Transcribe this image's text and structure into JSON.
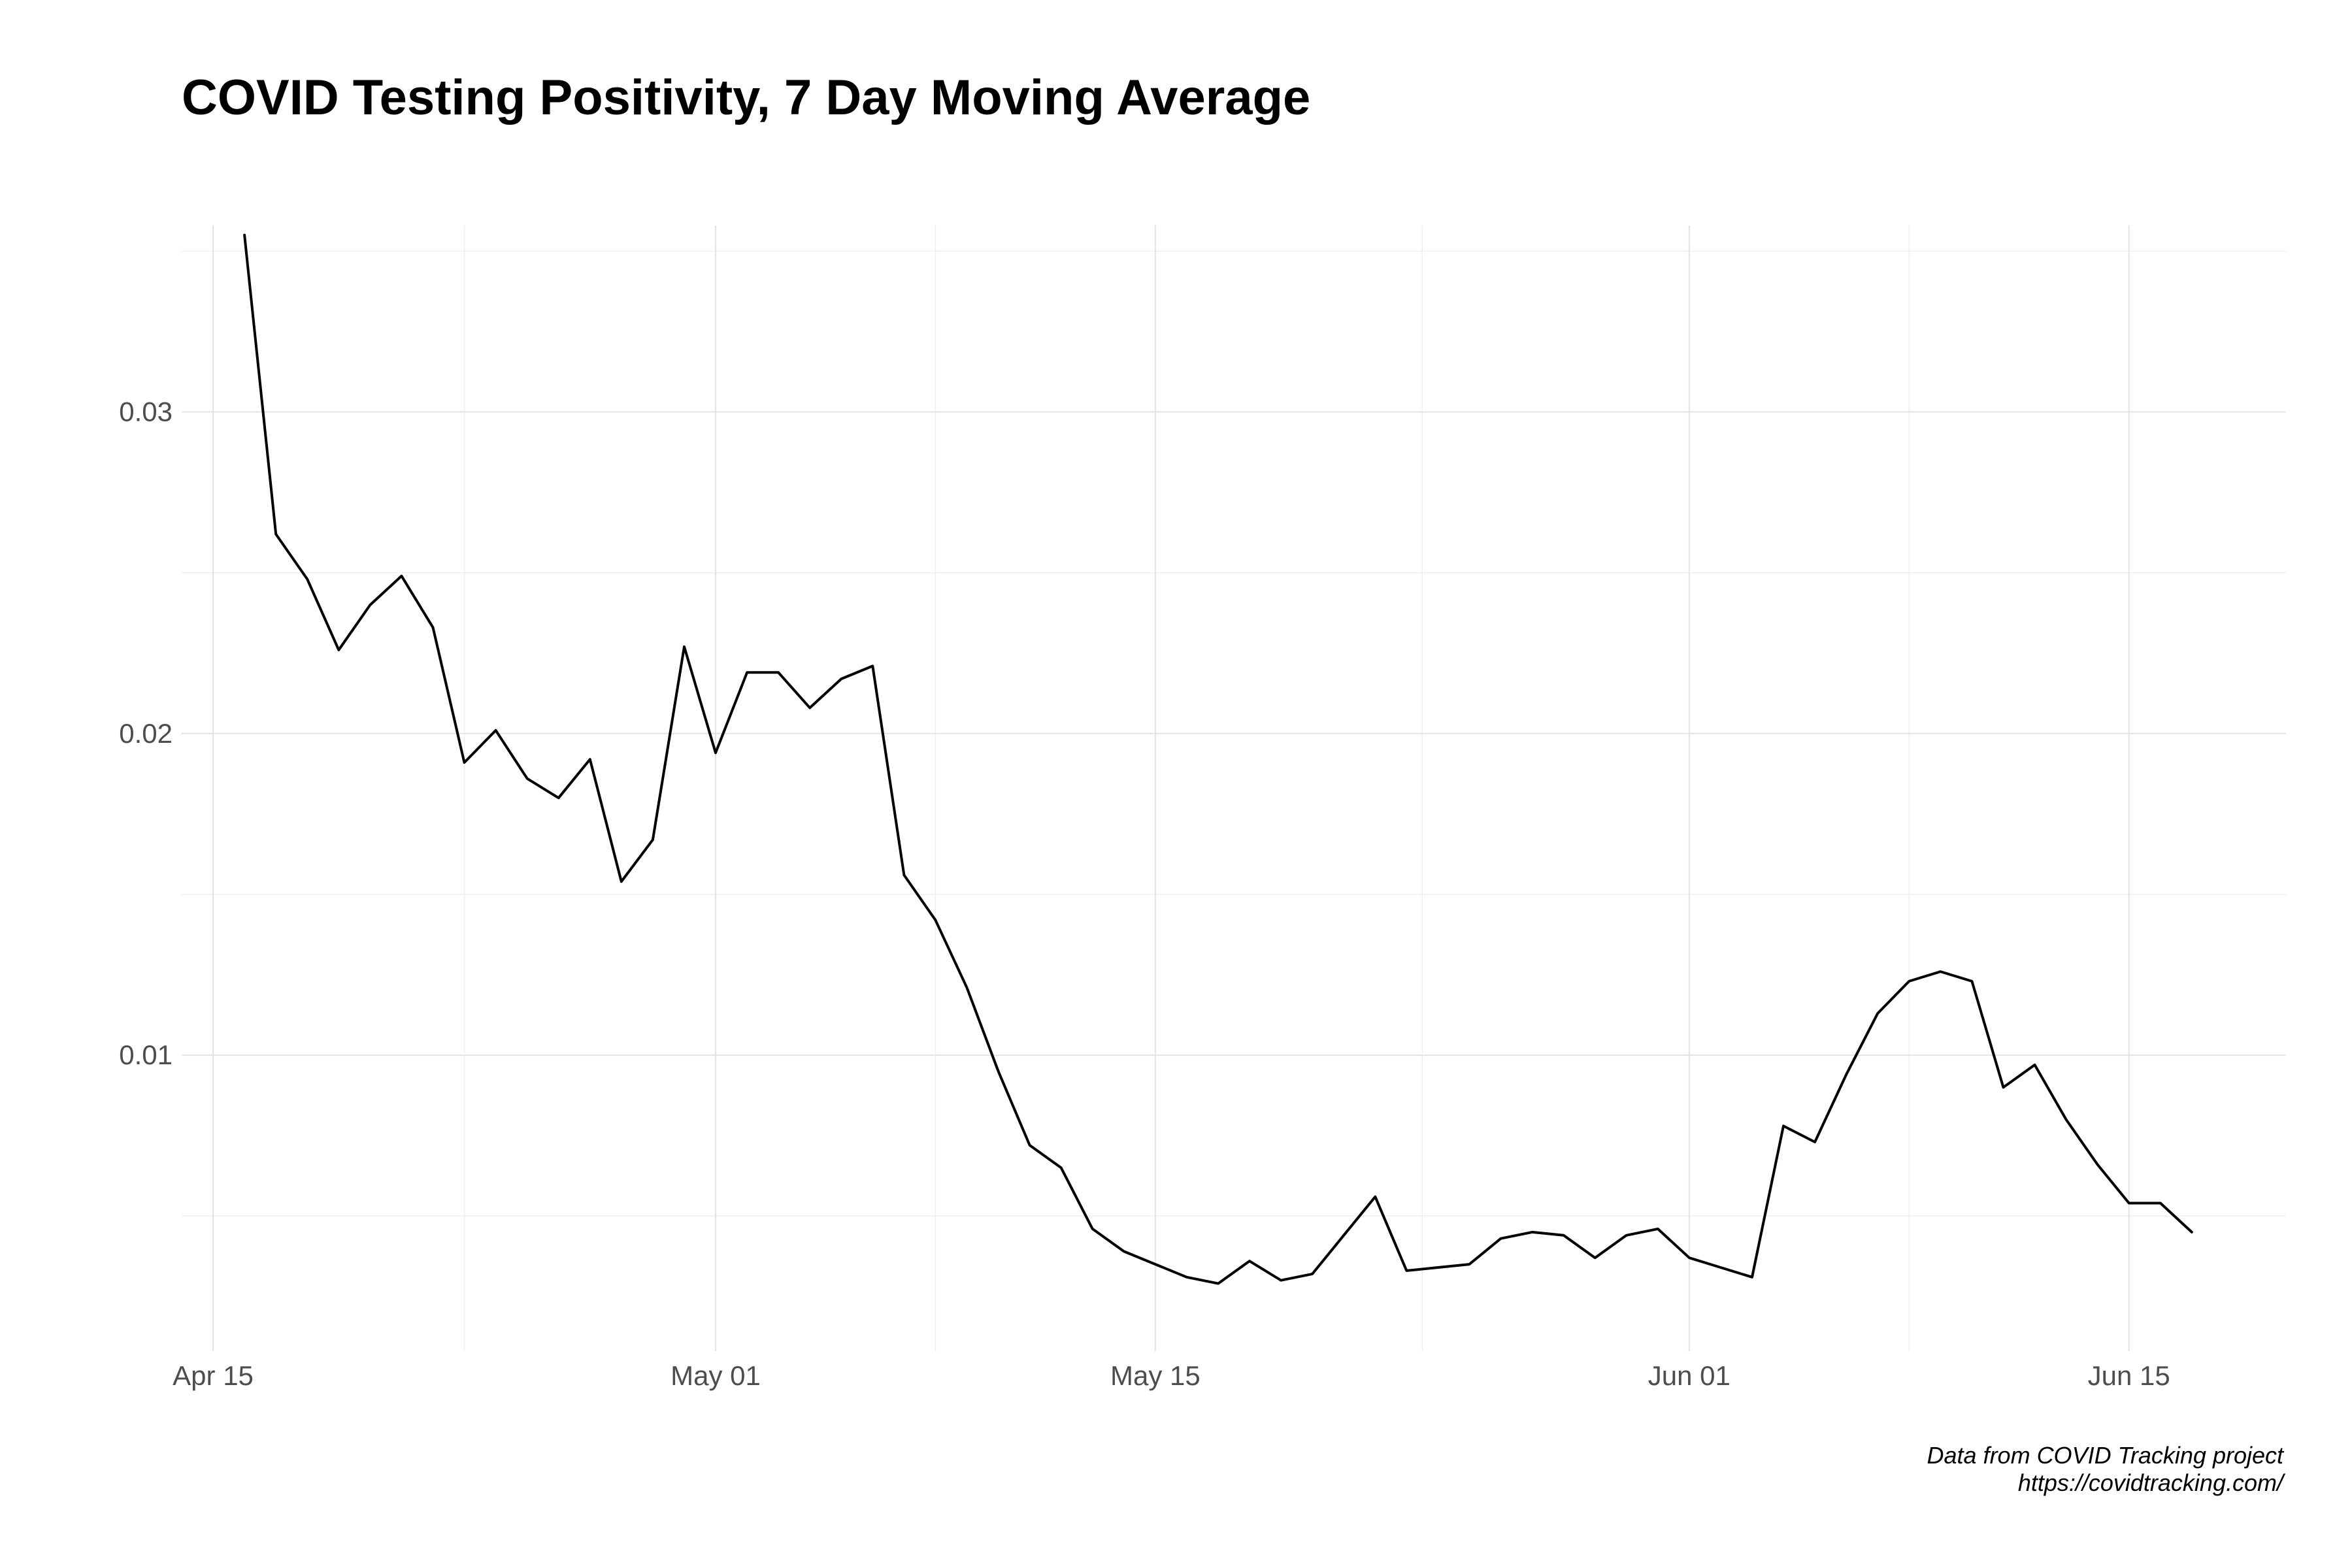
{
  "title": "COVID Testing Positivity, 7 Day Moving Average",
  "caption": {
    "line1": "Data from COVID Tracking project",
    "line2": "https://covidtracking.com/"
  },
  "colors": {
    "line": "#000000",
    "grid_major": "#e3e3e3",
    "grid_minor": "#efefef",
    "tick_label": "#4d4d4d",
    "background": "#ffffff"
  },
  "chart_data": {
    "type": "line",
    "title": "COVID Testing Positivity, 7 Day Moving Average",
    "xlabel": "",
    "ylabel": "",
    "x_type": "date",
    "xlim": [
      "2020-04-14",
      "2020-06-20"
    ],
    "ylim": [
      0.0008,
      0.0358
    ],
    "x_ticks": [
      {
        "date": "2020-04-15",
        "label": "Apr 15"
      },
      {
        "date": "2020-05-01",
        "label": "May 01"
      },
      {
        "date": "2020-05-15",
        "label": "May 15"
      },
      {
        "date": "2020-06-01",
        "label": "Jun 01"
      },
      {
        "date": "2020-06-15",
        "label": "Jun 15"
      }
    ],
    "y_ticks": [
      {
        "value": 0.01,
        "label": "0.01"
      },
      {
        "value": 0.02,
        "label": "0.02"
      },
      {
        "value": 0.03,
        "label": "0.03"
      }
    ],
    "grid": true,
    "series": [
      {
        "x": [
          "2020-04-16",
          "2020-04-17",
          "2020-04-18",
          "2020-04-19",
          "2020-04-20",
          "2020-04-21",
          "2020-04-22",
          "2020-04-23",
          "2020-04-24",
          "2020-04-25",
          "2020-04-26",
          "2020-04-27",
          "2020-04-28",
          "2020-04-29",
          "2020-04-30",
          "2020-05-01",
          "2020-05-02",
          "2020-05-03",
          "2020-05-04",
          "2020-05-05",
          "2020-05-06",
          "2020-05-07",
          "2020-05-08",
          "2020-05-09",
          "2020-05-10",
          "2020-05-11",
          "2020-05-12",
          "2020-05-13",
          "2020-05-14",
          "2020-05-15",
          "2020-05-16",
          "2020-05-17",
          "2020-05-18",
          "2020-05-19",
          "2020-05-20",
          "2020-05-21",
          "2020-05-22",
          "2020-05-23",
          "2020-05-24",
          "2020-05-25",
          "2020-05-26",
          "2020-05-27",
          "2020-05-28",
          "2020-05-29",
          "2020-05-30",
          "2020-05-31",
          "2020-06-01",
          "2020-06-02",
          "2020-06-03",
          "2020-06-04",
          "2020-06-05",
          "2020-06-06",
          "2020-06-07",
          "2020-06-08",
          "2020-06-09",
          "2020-06-10",
          "2020-06-11",
          "2020-06-12",
          "2020-06-13",
          "2020-06-14",
          "2020-06-15",
          "2020-06-16",
          "2020-06-17"
        ],
        "y": [
          0.0355,
          0.0262,
          0.0248,
          0.0226,
          0.024,
          0.0249,
          0.0233,
          0.0191,
          0.0201,
          0.0186,
          0.018,
          0.0192,
          0.0154,
          0.0167,
          0.0227,
          0.0194,
          0.0219,
          0.0219,
          0.0208,
          0.0217,
          0.0221,
          0.0156,
          0.0142,
          0.0121,
          0.0095,
          0.0072,
          0.0065,
          0.0046,
          0.0039,
          0.0035,
          0.0031,
          0.0029,
          0.0036,
          0.003,
          0.0032,
          0.0044,
          0.0056,
          0.0033,
          0.0034,
          0.0035,
          0.0043,
          0.0045,
          0.0044,
          0.0037,
          0.0044,
          0.0046,
          0.0037,
          0.0034,
          0.0031,
          0.0078,
          0.0073,
          0.0094,
          0.0113,
          0.0123,
          0.0126,
          0.0123,
          0.009,
          0.0097,
          0.008,
          0.0066,
          0.0054,
          0.0054,
          0.0045
        ]
      }
    ]
  }
}
